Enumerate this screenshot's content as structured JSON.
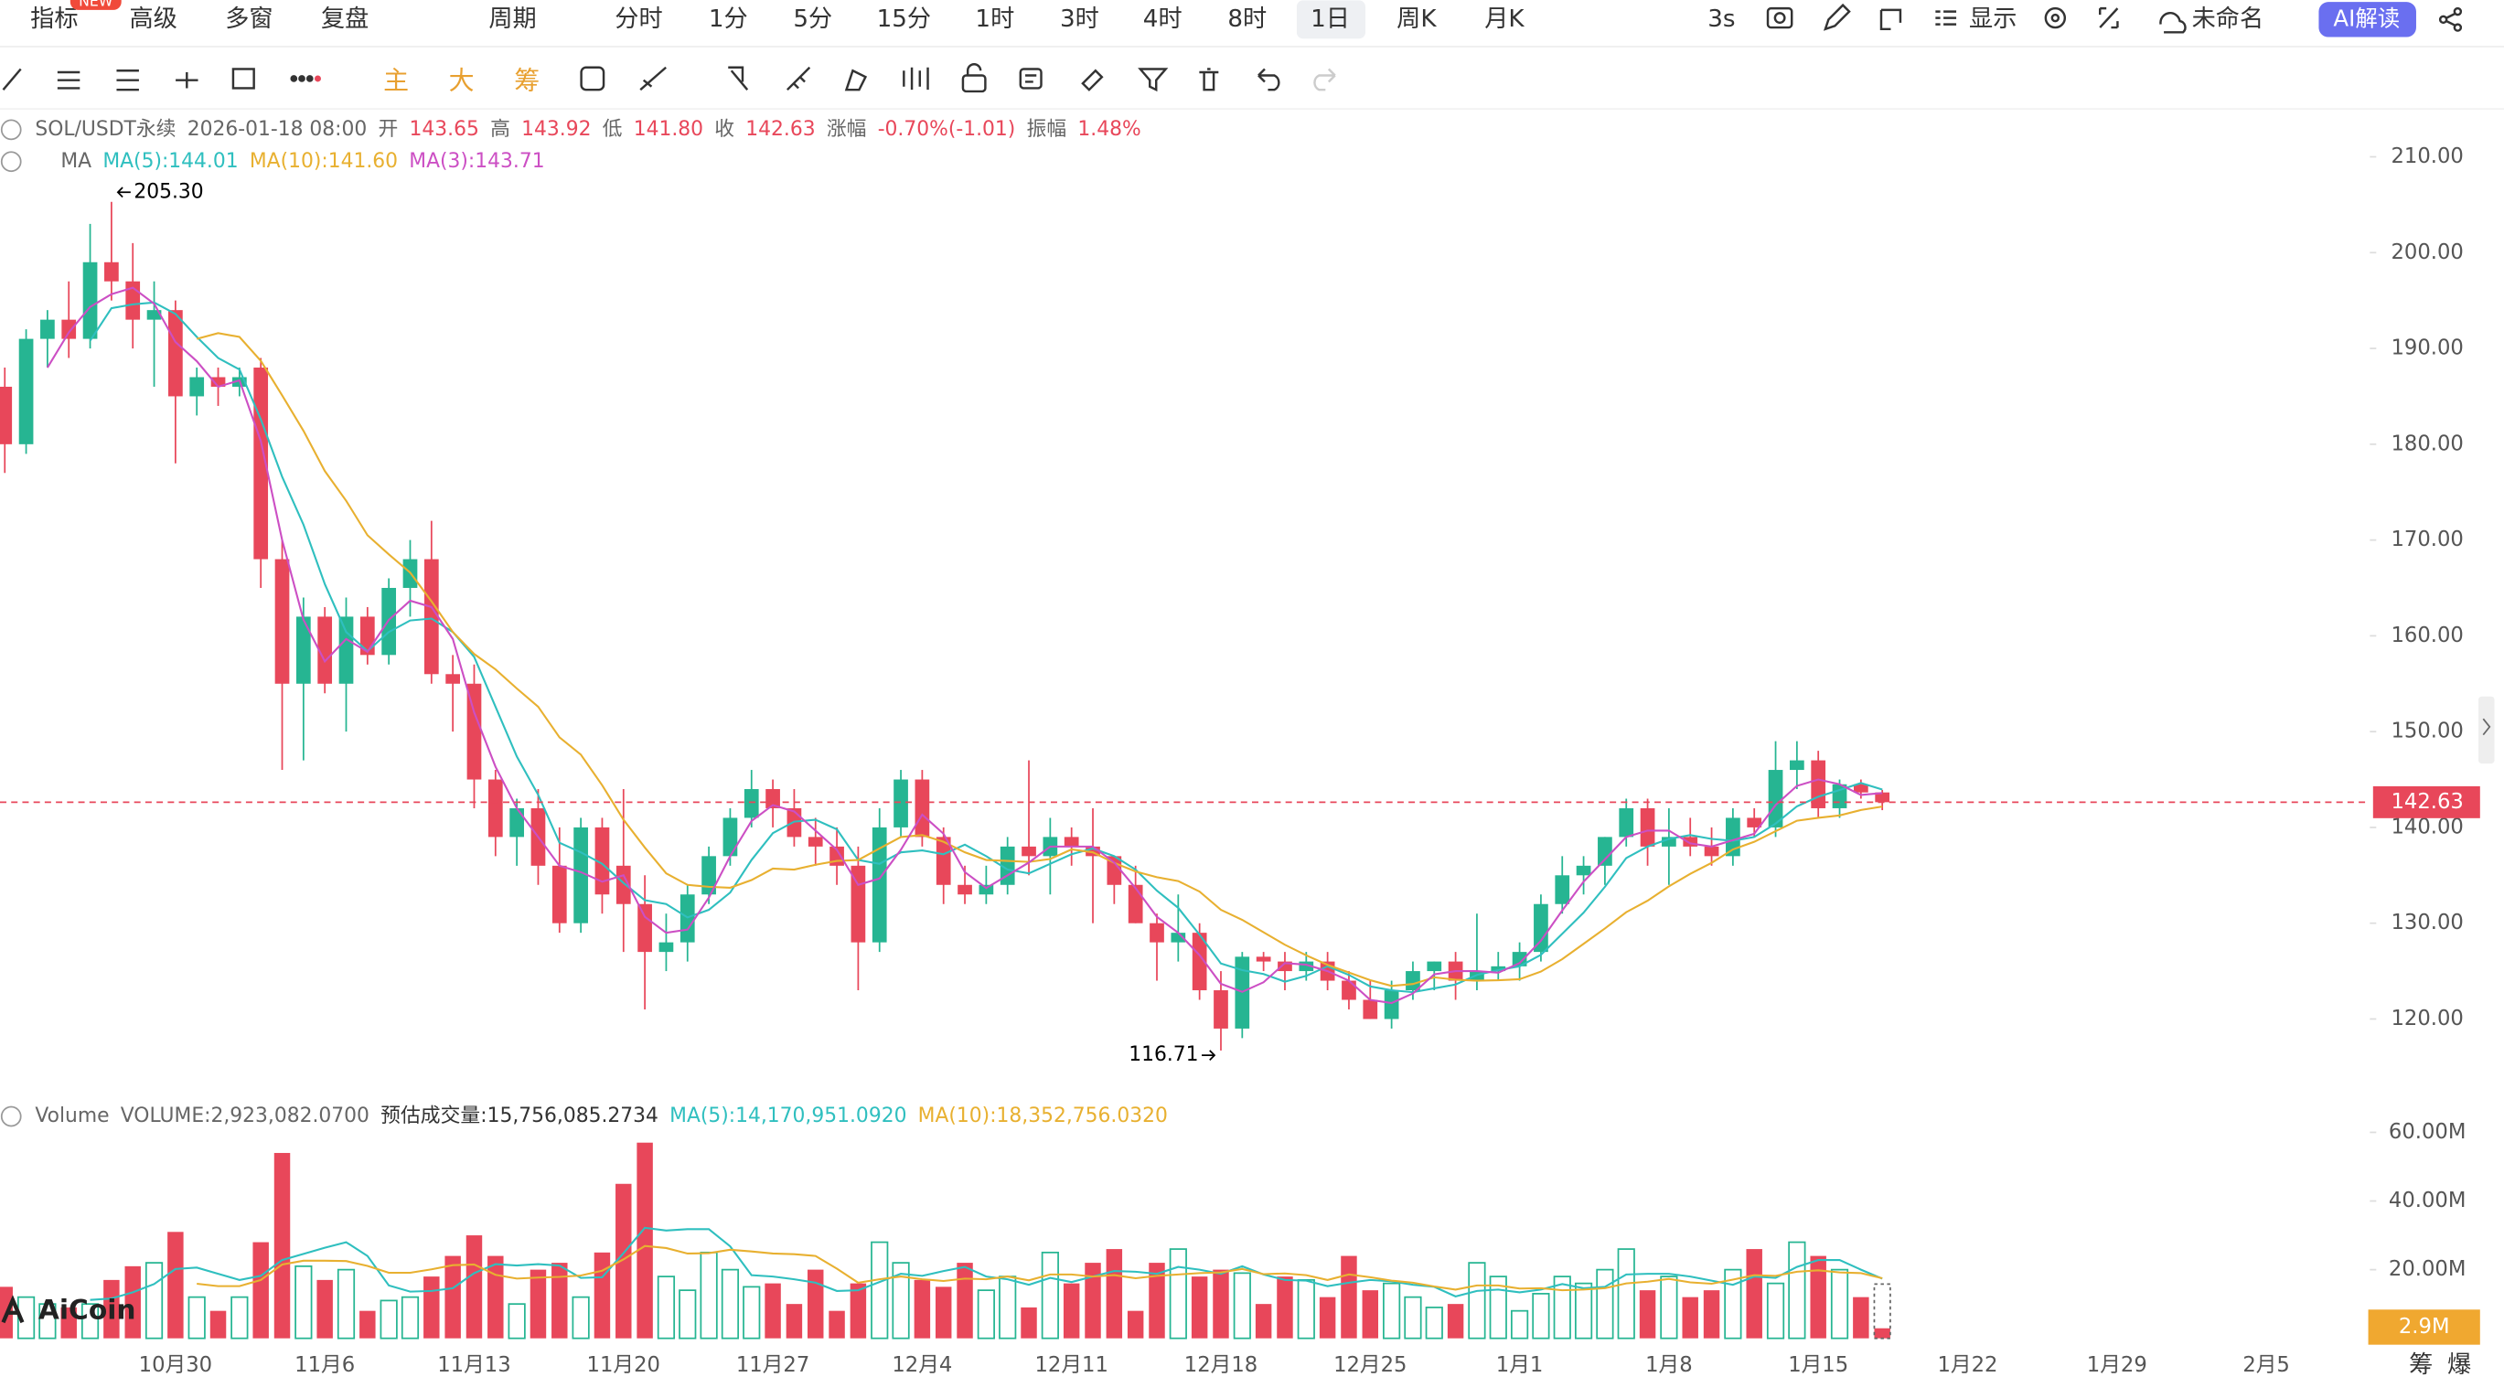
{
  "toolbar": {
    "left": [
      "指标",
      "高级",
      "多窗",
      "复盘"
    ],
    "badge": "NEW",
    "period_menu": "周期",
    "periods": [
      "分时",
      "1分",
      "5分",
      "15分",
      "1时",
      "3时",
      "4时",
      "8时",
      "1日",
      "周K",
      "月K"
    ],
    "right": [
      "3s",
      "显示",
      "未命名"
    ],
    "ai_button": "AI解读",
    "tool_labels": [
      "主",
      "大",
      "筹"
    ]
  },
  "info_rows": [
    [
      {
        "text": "SOL/USDT永续",
        "color": "#666"
      },
      {
        "text": "2026-01-18 08:00",
        "color": "#666"
      },
      {
        "text": "开",
        "color": "#666"
      },
      {
        "text": "143.65",
        "color": "#e8475a"
      },
      {
        "text": "高",
        "color": "#666"
      },
      {
        "text": "143.92",
        "color": "#e8475a"
      },
      {
        "text": "低",
        "color": "#666"
      },
      {
        "text": "141.80",
        "color": "#e8475a"
      },
      {
        "text": "收",
        "color": "#666"
      },
      {
        "text": "142.63",
        "color": "#e8475a"
      },
      {
        "text": "涨幅",
        "color": "#666"
      },
      {
        "text": "-0.70%(-1.01)",
        "color": "#e8475a"
      },
      {
        "text": "振幅",
        "color": "#666"
      },
      {
        "text": "1.48%",
        "color": "#e8475a"
      }
    ],
    [
      {
        "text": "MA",
        "color": "#666"
      },
      {
        "text": "MA(5):144.01",
        "color": "#2fbfbf"
      },
      {
        "text": "MA(10):141.60",
        "color": "#e8b030"
      },
      {
        "text": "MA(3):143.71",
        "color": "#cc4fc4"
      }
    ],
    [
      {
        "text": "Volume",
        "color": "#666"
      },
      {
        "text": "VOLUME:2,923,082.0700",
        "color": "#666"
      },
      {
        "text": "预估成交量:15,756,085.2734",
        "color": "#333"
      },
      {
        "text": "MA(5):14,170,951.0920",
        "color": "#2fbfbf"
      },
      {
        "text": "MA(10):18,352,756.0320",
        "color": "#e8b030"
      }
    ]
  ],
  "watermark": "AiCoin",
  "corner_labels": [
    "筹",
    "爆"
  ],
  "chart_data": {
    "type": "candlestick",
    "categories": [
      null,
      null,
      null,
      null,
      null,
      null,
      null,
      null,
      "10月30",
      null,
      null,
      null,
      null,
      null,
      null,
      "11月6",
      null,
      null,
      null,
      null,
      null,
      null,
      "11月13",
      null,
      null,
      null,
      null,
      null,
      null,
      "11月20",
      null,
      null,
      null,
      null,
      null,
      null,
      "11月27",
      null,
      null,
      null,
      null,
      null,
      null,
      "12月4",
      null,
      null,
      null,
      null,
      null,
      null,
      "12月11",
      null,
      null,
      null,
      null,
      null,
      null,
      "12月18",
      null,
      null,
      null,
      null,
      null,
      null,
      "12月25",
      null,
      null,
      null,
      null,
      null,
      null,
      "1月1",
      null,
      null,
      null,
      null,
      null,
      null,
      "1月8",
      null,
      null,
      null,
      null,
      null,
      null,
      "1月15",
      null,
      null,
      null
    ],
    "future_categories": [
      "1月22",
      "1月29",
      "2月5"
    ],
    "open": [
      186,
      180,
      191,
      193,
      191,
      199,
      197,
      193,
      194,
      185,
      187,
      186,
      188,
      168,
      155,
      162,
      155,
      162,
      158,
      165,
      168,
      156,
      155,
      145,
      139,
      142,
      136,
      130,
      140,
      136,
      132,
      127,
      128,
      133,
      137,
      141,
      144,
      142,
      139,
      138,
      136,
      128,
      140,
      145,
      139,
      134,
      133,
      134,
      138,
      137,
      139,
      138,
      137,
      134,
      130,
      128,
      129,
      123,
      119,
      126.5,
      126,
      125,
      126,
      124,
      122,
      120,
      123,
      125,
      126,
      124,
      125,
      125.5,
      127,
      132,
      135,
      136,
      139,
      142,
      138,
      139,
      138,
      137,
      141,
      140,
      146,
      147,
      142,
      144.5,
      143.65
    ],
    "high": [
      188,
      192,
      194,
      197,
      203,
      205.3,
      201,
      197,
      195,
      188,
      188,
      188,
      189,
      170,
      164,
      163,
      164,
      163,
      166,
      170,
      172,
      158,
      157,
      146,
      143,
      144,
      140,
      141,
      141,
      144,
      135,
      131,
      134,
      138,
      142,
      146,
      145,
      144,
      141,
      140,
      138,
      142,
      146,
      146,
      140,
      136,
      136,
      139,
      147,
      141,
      140,
      142,
      137,
      136,
      131,
      133,
      130,
      125,
      127,
      127,
      127,
      127,
      127,
      125,
      124,
      124,
      126,
      126,
      127,
      131,
      127,
      128,
      133,
      137,
      137,
      139,
      143,
      143,
      142,
      141,
      140,
      142,
      142,
      149,
      149,
      148,
      145,
      145,
      143.92
    ],
    "low": [
      177,
      179,
      188,
      189,
      190,
      195,
      190,
      186,
      178,
      183,
      184,
      185,
      165,
      146,
      147,
      154,
      150,
      157,
      157,
      162,
      155,
      150,
      142,
      137,
      136,
      134,
      129,
      129,
      131,
      127,
      121,
      125,
      126,
      132,
      136,
      140,
      140,
      138,
      136,
      134,
      123,
      127,
      139,
      138,
      132,
      132,
      132,
      133,
      135,
      133,
      136,
      130,
      132,
      130,
      124,
      126,
      122,
      116.71,
      118,
      125,
      123,
      124,
      123,
      121,
      120,
      119,
      122,
      123,
      122,
      123,
      124,
      124,
      126,
      131,
      133,
      134,
      138,
      136,
      134,
      137,
      136,
      136,
      139,
      139,
      144,
      141,
      141,
      143,
      141.8
    ],
    "close": [
      180,
      191,
      193,
      191,
      199,
      197,
      193,
      194,
      185,
      187,
      186,
      187,
      168,
      155,
      162,
      155,
      162,
      158,
      165,
      168,
      156,
      155,
      145,
      139,
      142,
      136,
      130,
      140,
      133,
      132,
      127,
      128,
      133,
      137,
      141,
      144,
      142,
      139,
      138,
      136,
      128,
      140,
      145,
      139,
      134,
      133,
      134,
      138,
      137,
      139,
      138,
      137,
      134,
      130,
      128,
      129,
      123,
      119,
      126.5,
      126,
      125,
      126,
      124,
      122,
      120,
      123,
      125,
      126,
      124,
      125,
      125.5,
      127,
      132,
      135,
      136,
      139,
      142,
      138,
      139,
      138,
      137,
      141,
      140,
      146,
      147,
      142,
      144.5,
      143.65,
      142.63
    ],
    "volume": [
      15,
      12,
      10,
      9,
      10,
      17,
      21,
      22,
      31,
      12,
      8,
      12,
      28,
      54,
      21,
      17,
      20,
      8,
      11,
      12,
      18,
      24,
      30,
      24,
      10,
      20,
      22,
      12,
      25,
      45,
      57,
      18,
      14,
      25,
      20,
      15,
      16,
      10,
      20,
      8,
      16,
      28,
      22,
      17,
      15,
      22,
      14,
      18,
      9,
      25,
      16,
      22,
      26,
      8,
      22,
      26,
      18,
      20,
      19,
      10,
      18,
      17,
      12,
      24,
      14,
      16,
      12,
      9,
      10,
      22,
      18,
      8,
      13,
      18,
      16,
      20,
      26,
      14,
      18,
      12,
      14,
      20,
      26,
      16,
      28,
      24,
      20,
      12,
      2.92308207
    ],
    "volume_value_label": "2.9M",
    "up_color": "#26b592",
    "down_color": "#e8475a",
    "ma": [
      {
        "period": 5,
        "color": "#2fbfbf"
      },
      {
        "period": 10,
        "color": "#e8b030"
      },
      {
        "period": 3,
        "color": "#cc4fc4"
      }
    ],
    "volume_ma": [
      {
        "period": 5,
        "color": "#2fbfbf"
      },
      {
        "period": 10,
        "color": "#e8b030"
      }
    ],
    "ylim": [
      113,
      215
    ],
    "yticks": [
      {
        "value": 120,
        "label": "120.00"
      },
      {
        "value": 130,
        "label": "130.00"
      },
      {
        "value": 140,
        "label": "140.00"
      },
      {
        "value": 150,
        "label": "150.00"
      },
      {
        "value": 160,
        "label": "160.00"
      },
      {
        "value": 170,
        "label": "170.00"
      },
      {
        "value": 180,
        "label": "180.00"
      },
      {
        "value": 190,
        "label": "190.00"
      },
      {
        "value": 200,
        "label": "200.00"
      },
      {
        "value": 210,
        "label": "210.00"
      }
    ],
    "volume_ylim": [
      0,
      70
    ],
    "volume_yticks": [
      {
        "value": 20,
        "label": "20.00M"
      },
      {
        "value": 40,
        "label": "40.00M"
      },
      {
        "value": 60,
        "label": "60.00M"
      }
    ],
    "max_label": "205.30",
    "min_label": "116.71",
    "last_price_label": "142.63"
  }
}
